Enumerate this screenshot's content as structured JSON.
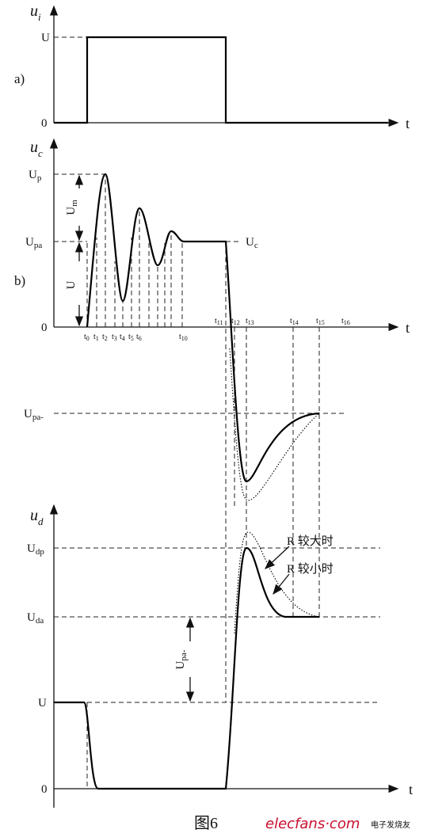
{
  "panel_a": {
    "label": "a)",
    "axis": {
      "main": "u",
      "sub": "i"
    },
    "level_u": "U",
    "zero": "0",
    "t": "t"
  },
  "panel_b": {
    "label": "b)",
    "axis": {
      "main": "u",
      "sub": "c"
    },
    "up": {
      "main": "U",
      "sub": "p"
    },
    "upa": {
      "main": "U",
      "sub": "pa"
    },
    "zero": "0",
    "t": "t",
    "upa_neg": {
      "main": "U",
      "sub": "pa-"
    },
    "uc": {
      "main": "U",
      "sub": "c"
    },
    "um": {
      "main": "U",
      "sub": "m"
    },
    "u": "U",
    "time_labels": [
      {
        "main": "t",
        "sub": "0"
      },
      {
        "main": "t",
        "sub": "1"
      },
      {
        "main": "t",
        "sub": "2"
      },
      {
        "main": "t",
        "sub": "3"
      },
      {
        "main": "t",
        "sub": "4"
      },
      {
        "main": "t",
        "sub": "5"
      },
      {
        "main": "t",
        "sub": "6"
      },
      {
        "main": "t",
        "sub": "10"
      },
      {
        "main": "t",
        "sub": "11"
      },
      {
        "main": "t",
        "sub": "12"
      },
      {
        "main": "t",
        "sub": "13"
      },
      {
        "main": "t",
        "sub": "14"
      },
      {
        "main": "t",
        "sub": "15"
      },
      {
        "main": "t",
        "sub": "16"
      }
    ]
  },
  "panel_d": {
    "axis": {
      "main": "u",
      "sub": "d"
    },
    "udp": {
      "main": "U",
      "sub": "dp"
    },
    "uda": {
      "main": "U",
      "sub": "da"
    },
    "u": "U",
    "zero": "0",
    "t": "t",
    "upa_neg": {
      "main": "U",
      "sub": "pa-"
    },
    "r_large": "R 较大时",
    "r_small": "R 较小时"
  },
  "caption": "图6",
  "watermark": {
    "brand": "elecfans·com",
    "cn": "电子发烧友"
  }
}
